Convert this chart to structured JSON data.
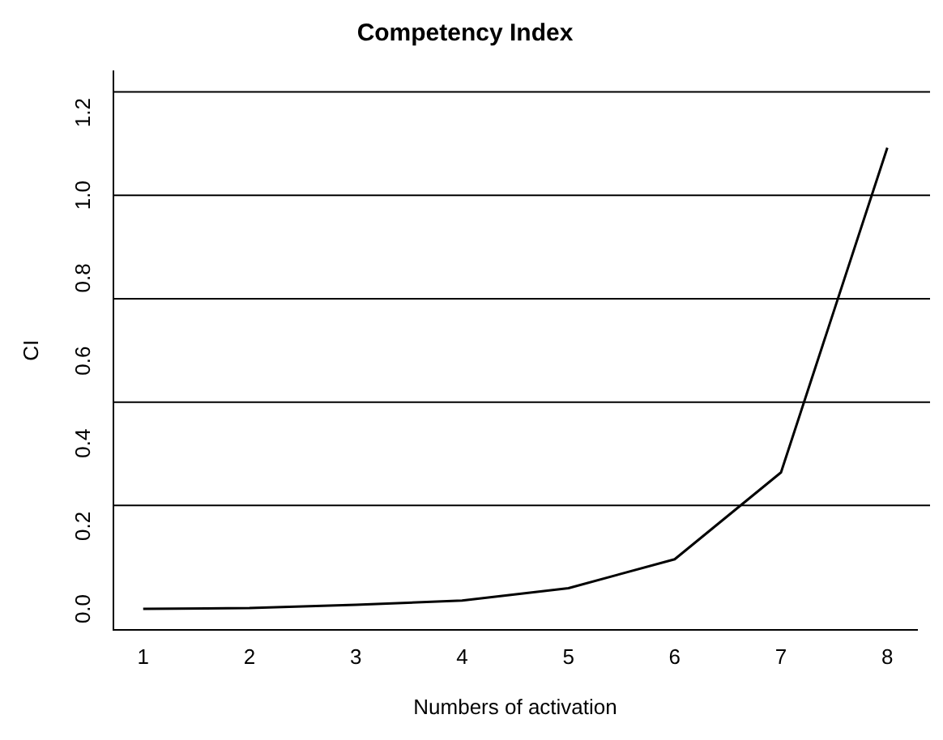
{
  "chart_data": {
    "type": "line",
    "title": "Competency Index",
    "xlabel": "Numbers of activation",
    "ylabel": "CI",
    "x": [
      1,
      2,
      3,
      4,
      5,
      6,
      7,
      8
    ],
    "series": [
      {
        "color": "#000000",
        "values": [
          0,
          0.002,
          0.01,
          0.02,
          0.05,
          0.12,
          0.33,
          1.115
        ]
      }
    ],
    "xlim": [
      0.72,
      8.28
    ],
    "xticks": [
      1,
      2,
      3,
      4,
      5,
      6,
      7,
      8
    ],
    "ylim": [
      -0.05,
      1.3
    ],
    "yticks": [
      {
        "value": 0,
        "label": "0.0"
      },
      {
        "value": 0.2,
        "label": "0.2"
      },
      {
        "value": 0.4,
        "label": "0.4"
      },
      {
        "value": 0.6,
        "label": "0.6"
      },
      {
        "value": 0.8,
        "label": "0.8"
      },
      {
        "value": 1,
        "label": "1.0"
      },
      {
        "value": 1.2,
        "label": "1.2"
      }
    ],
    "ref_lines": [
      {
        "axis": "y",
        "value": 0.25,
        "color": "#000000"
      },
      {
        "axis": "y",
        "value": 0.5,
        "color": "#000000"
      },
      {
        "axis": "y",
        "value": 0.75,
        "color": "#000000"
      },
      {
        "axis": "y",
        "value": 1.0,
        "color": "#000000"
      },
      {
        "axis": "y",
        "value": 1.25,
        "color": "#000000"
      }
    ],
    "grid": false,
    "legend": false,
    "marker": "none",
    "line_style": "solid"
  }
}
